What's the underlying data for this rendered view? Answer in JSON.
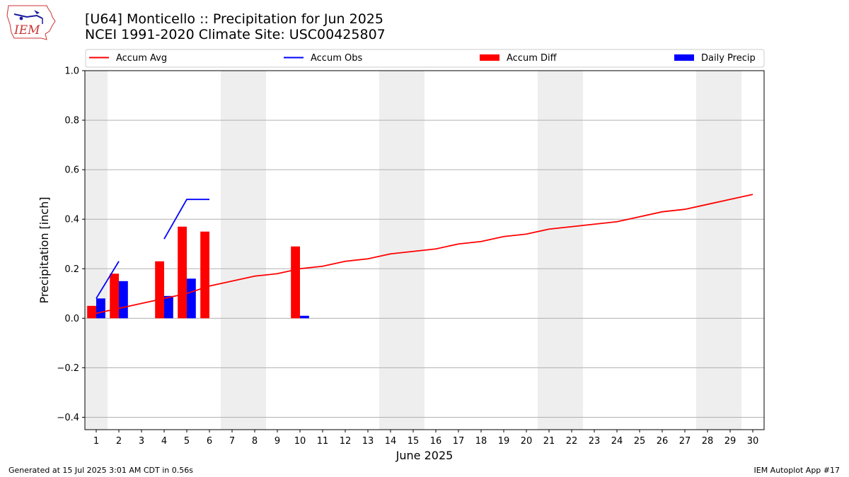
{
  "header": {
    "title_line1": "[U64] Monticello :: Precipitation for Jun 2025",
    "title_line2": "NCEI 1991-2020 Climate Site: USC00425807",
    "logo_text": "IEM"
  },
  "footer": {
    "generated": "Generated at 15 Jul 2025 3:01 AM CDT in 0.56s",
    "app": "IEM Autoplot App #17"
  },
  "colors": {
    "accum_avg": "#ff0000",
    "accum_obs": "#0000ff",
    "accum_diff": "#ff0000",
    "daily_precip": "#0000ff",
    "weekend_shade": "#eeeeee",
    "grid": "#b0b0b0"
  },
  "chart_data": {
    "type": "bar",
    "title": "",
    "xlabel": "June 2025",
    "ylabel": "Precipitation [inch]",
    "ylim": [
      -0.45,
      1.0
    ],
    "xlim": [
      0.5,
      30.5
    ],
    "yticks": [
      -0.4,
      -0.2,
      0.0,
      0.2,
      0.4,
      0.6,
      0.8,
      1.0
    ],
    "ytick_labels": [
      "−0.4",
      "−0.2",
      "0.0",
      "0.2",
      "0.4",
      "0.6",
      "0.8",
      "1.0"
    ],
    "categories": [
      "1",
      "2",
      "3",
      "4",
      "5",
      "6",
      "7",
      "8",
      "9",
      "10",
      "11",
      "12",
      "13",
      "14",
      "15",
      "16",
      "17",
      "18",
      "19",
      "20",
      "21",
      "22",
      "23",
      "24",
      "25",
      "26",
      "27",
      "28",
      "29",
      "30"
    ],
    "grid": "horizontal",
    "legend_position": "top",
    "weekend_shading": [
      [
        1,
        1
      ],
      [
        7,
        8
      ],
      [
        14,
        15
      ],
      [
        21,
        22
      ],
      [
        28,
        29
      ]
    ],
    "series": [
      {
        "name": "Accum Avg",
        "kind": "line",
        "values": [
          0.02,
          0.04,
          0.06,
          0.08,
          0.1,
          0.13,
          0.15,
          0.17,
          0.18,
          0.2,
          0.21,
          0.23,
          0.24,
          0.26,
          0.27,
          0.28,
          0.3,
          0.31,
          0.33,
          0.34,
          0.36,
          0.37,
          0.38,
          0.39,
          0.41,
          0.43,
          0.44,
          0.46,
          0.48,
          0.5
        ]
      },
      {
        "name": "Accum Obs",
        "kind": "line",
        "values": [
          0.08,
          0.23,
          null,
          0.32,
          0.48,
          0.48,
          null,
          null,
          null,
          null,
          null,
          null,
          null,
          null,
          null,
          null,
          null,
          null,
          null,
          null,
          null,
          null,
          null,
          null,
          null,
          null,
          null,
          null,
          null,
          null
        ]
      },
      {
        "name": "Accum Diff",
        "kind": "bar",
        "values": [
          0.05,
          0.18,
          null,
          0.23,
          0.37,
          0.35,
          null,
          null,
          null,
          0.29,
          null,
          null,
          null,
          null,
          null,
          null,
          null,
          null,
          null,
          null,
          null,
          null,
          null,
          null,
          null,
          null,
          null,
          null,
          null,
          null
        ]
      },
      {
        "name": "Daily Precip",
        "kind": "bar",
        "values": [
          0.08,
          0.15,
          null,
          0.09,
          0.16,
          null,
          null,
          null,
          null,
          0.01,
          null,
          null,
          null,
          null,
          null,
          null,
          null,
          null,
          null,
          null,
          null,
          null,
          null,
          null,
          null,
          null,
          null,
          null,
          null,
          null
        ]
      }
    ]
  }
}
